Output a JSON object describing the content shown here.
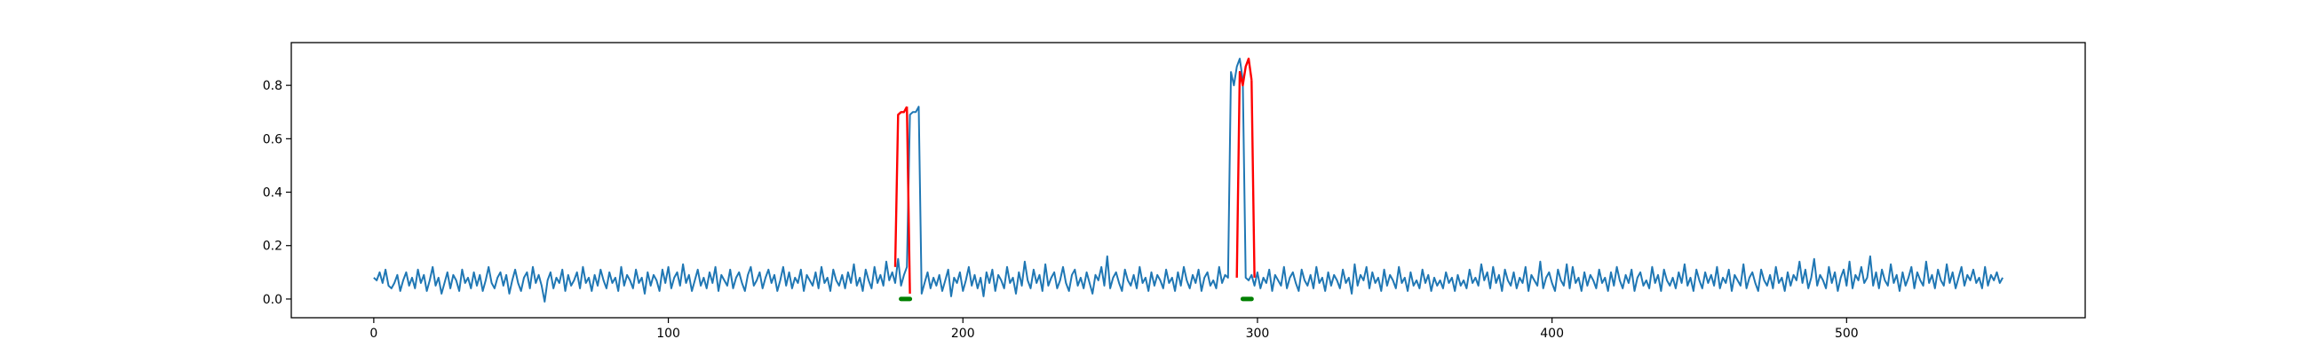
{
  "chart_data": {
    "type": "line",
    "title": "",
    "xlabel": "",
    "ylabel": "",
    "xlim": [
      -28,
      581
    ],
    "ylim": [
      -0.07,
      0.96
    ],
    "x_ticks": [
      0,
      100,
      200,
      300,
      400,
      500
    ],
    "y_ticks": [
      0.0,
      0.2,
      0.4,
      0.6,
      0.8
    ],
    "grid": false,
    "legend": "none",
    "series": [
      {
        "color": "#1f77b4",
        "x_start": 0,
        "x_step": 1,
        "values": [
          0.08,
          0.07,
          0.1,
          0.06,
          0.11,
          0.05,
          0.04,
          0.06,
          0.09,
          0.03,
          0.07,
          0.1,
          0.05,
          0.08,
          0.04,
          0.11,
          0.06,
          0.09,
          0.03,
          0.07,
          0.12,
          0.05,
          0.08,
          0.02,
          0.06,
          0.1,
          0.04,
          0.09,
          0.07,
          0.03,
          0.11,
          0.06,
          0.08,
          0.04,
          0.1,
          0.05,
          0.09,
          0.03,
          0.07,
          0.12,
          0.06,
          0.04,
          0.08,
          0.1,
          0.05,
          0.09,
          0.02,
          0.07,
          0.11,
          0.06,
          0.03,
          0.08,
          0.1,
          0.04,
          0.12,
          0.06,
          0.09,
          0.05,
          -0.01,
          0.07,
          0.1,
          0.04,
          0.08,
          0.06,
          0.11,
          0.03,
          0.09,
          0.05,
          0.07,
          0.1,
          0.04,
          0.12,
          0.06,
          0.08,
          0.03,
          0.09,
          0.05,
          0.11,
          0.07,
          0.04,
          0.1,
          0.06,
          0.08,
          0.03,
          0.12,
          0.05,
          0.09,
          0.07,
          0.04,
          0.11,
          0.06,
          0.08,
          0.02,
          0.1,
          0.05,
          0.09,
          0.07,
          0.03,
          0.11,
          0.06,
          0.12,
          0.04,
          0.08,
          0.1,
          0.05,
          0.13,
          0.06,
          0.09,
          0.03,
          0.07,
          0.11,
          0.05,
          0.08,
          0.04,
          0.1,
          0.06,
          0.12,
          0.03,
          0.09,
          0.07,
          0.05,
          0.11,
          0.04,
          0.08,
          0.1,
          0.06,
          0.03,
          0.09,
          0.12,
          0.05,
          0.07,
          0.1,
          0.04,
          0.08,
          0.11,
          0.06,
          0.09,
          0.03,
          0.07,
          0.12,
          0.05,
          0.1,
          0.04,
          0.08,
          0.06,
          0.11,
          0.03,
          0.09,
          0.07,
          0.05,
          0.1,
          0.04,
          0.12,
          0.06,
          0.08,
          0.03,
          0.11,
          0.07,
          0.05,
          0.09,
          0.04,
          0.1,
          0.06,
          0.13,
          0.05,
          0.08,
          0.03,
          0.11,
          0.07,
          0.04,
          0.12,
          0.06,
          0.09,
          0.05,
          0.14,
          0.07,
          0.1,
          0.06,
          0.15,
          0.05,
          0.09,
          0.12,
          0.69,
          0.7,
          0.7,
          0.72,
          0.02,
          0.06,
          0.1,
          0.04,
          0.08,
          0.05,
          0.09,
          0.03,
          0.07,
          0.11,
          0.01,
          0.08,
          0.06,
          0.1,
          0.03,
          0.07,
          0.12,
          0.05,
          0.09,
          0.04,
          0.08,
          0.01,
          0.1,
          0.06,
          0.11,
          0.03,
          0.09,
          0.07,
          0.04,
          0.12,
          0.06,
          0.08,
          0.02,
          0.1,
          0.05,
          0.14,
          0.07,
          0.04,
          0.11,
          0.06,
          0.09,
          0.03,
          0.13,
          0.05,
          0.08,
          0.1,
          0.04,
          0.07,
          0.12,
          0.06,
          0.03,
          0.09,
          0.11,
          0.05,
          0.08,
          0.04,
          0.1,
          0.06,
          0.02,
          0.09,
          0.07,
          0.12,
          0.05,
          0.16,
          0.04,
          0.08,
          0.1,
          0.06,
          0.03,
          0.11,
          0.07,
          0.05,
          0.09,
          0.04,
          0.12,
          0.06,
          0.08,
          0.03,
          0.1,
          0.05,
          0.09,
          0.07,
          0.04,
          0.11,
          0.06,
          0.08,
          0.03,
          0.1,
          0.05,
          0.12,
          0.07,
          0.04,
          0.09,
          0.06,
          0.11,
          0.03,
          0.08,
          0.1,
          0.05,
          0.07,
          0.04,
          0.12,
          0.06,
          0.09,
          0.08,
          0.85,
          0.8,
          0.87,
          0.9,
          0.82,
          0.08,
          0.07,
          0.09,
          0.05,
          0.1,
          0.04,
          0.08,
          0.06,
          0.11,
          0.03,
          0.09,
          0.07,
          0.05,
          0.12,
          0.04,
          0.08,
          0.1,
          0.06,
          0.03,
          0.11,
          0.07,
          0.05,
          0.09,
          0.04,
          0.12,
          0.06,
          0.08,
          0.03,
          0.1,
          0.05,
          0.09,
          0.07,
          0.04,
          0.11,
          0.06,
          0.08,
          0.02,
          0.13,
          0.05,
          0.09,
          0.07,
          0.12,
          0.04,
          0.1,
          0.06,
          0.08,
          0.03,
          0.11,
          0.05,
          0.09,
          0.07,
          0.04,
          0.12,
          0.06,
          0.08,
          0.03,
          0.1,
          0.05,
          0.07,
          0.04,
          0.11,
          0.06,
          0.09,
          0.03,
          0.08,
          0.05,
          0.07,
          0.04,
          0.1,
          0.06,
          0.08,
          0.03,
          0.09,
          0.05,
          0.07,
          0.04,
          0.11,
          0.06,
          0.08,
          0.05,
          0.13,
          0.07,
          0.1,
          0.04,
          0.12,
          0.06,
          0.09,
          0.03,
          0.11,
          0.07,
          0.05,
          0.1,
          0.04,
          0.08,
          0.06,
          0.12,
          0.03,
          0.09,
          0.07,
          0.05,
          0.14,
          0.04,
          0.08,
          0.1,
          0.06,
          0.03,
          0.11,
          0.07,
          0.05,
          0.13,
          0.04,
          0.12,
          0.06,
          0.08,
          0.03,
          0.1,
          0.05,
          0.09,
          0.07,
          0.04,
          0.11,
          0.06,
          0.08,
          0.03,
          0.1,
          0.05,
          0.12,
          0.07,
          0.04,
          0.09,
          0.06,
          0.11,
          0.03,
          0.08,
          0.1,
          0.05,
          0.07,
          0.04,
          0.12,
          0.06,
          0.09,
          0.03,
          0.11,
          0.07,
          0.05,
          0.08,
          0.04,
          0.1,
          0.06,
          0.13,
          0.05,
          0.08,
          0.03,
          0.11,
          0.07,
          0.04,
          0.1,
          0.06,
          0.09,
          0.05,
          0.12,
          0.04,
          0.08,
          0.06,
          0.11,
          0.03,
          0.09,
          0.07,
          0.05,
          0.13,
          0.04,
          0.08,
          0.1,
          0.06,
          0.03,
          0.11,
          0.07,
          0.05,
          0.09,
          0.04,
          0.12,
          0.06,
          0.08,
          0.03,
          0.1,
          0.05,
          0.09,
          0.07,
          0.14,
          0.06,
          0.11,
          0.04,
          0.08,
          0.15,
          0.05,
          0.09,
          0.07,
          0.04,
          0.12,
          0.06,
          0.1,
          0.03,
          0.08,
          0.11,
          0.05,
          0.14,
          0.04,
          0.09,
          0.07,
          0.12,
          0.06,
          0.08,
          0.16,
          0.05,
          0.1,
          0.04,
          0.11,
          0.07,
          0.05,
          0.13,
          0.06,
          0.09,
          0.03,
          0.1,
          0.05,
          0.08,
          0.12,
          0.04,
          0.1,
          0.07,
          0.05,
          0.14,
          0.06,
          0.09,
          0.04,
          0.11,
          0.07,
          0.05,
          0.13,
          0.06,
          0.1,
          0.04,
          0.08,
          0.12,
          0.05,
          0.09,
          0.07,
          0.11,
          0.06,
          0.08,
          0.04,
          0.12,
          0.05,
          0.09,
          0.07,
          0.1,
          0.06,
          0.08
        ]
      },
      {
        "color": "#ff0000",
        "x": [
          177,
          178,
          179,
          180,
          181
        ],
        "values": [
          0.12,
          0.69,
          0.7,
          0.7,
          0.72
        ]
      },
      {
        "color": "#ff0000",
        "x": [
          293,
          294,
          295,
          296,
          297,
          298
        ],
        "values": [
          0.08,
          0.85,
          0.8,
          0.87,
          0.9,
          0.82
        ]
      },
      {
        "color": "#ff0000",
        "x": [
          181,
          182
        ],
        "values": [
          0.72,
          0.02
        ]
      },
      {
        "color": "#ff0000",
        "x": [
          298,
          299
        ],
        "values": [
          0.82,
          0.08
        ]
      },
      {
        "color": "#008000",
        "x": [
          179,
          182
        ],
        "values": [
          0.0,
          0.0
        ]
      },
      {
        "color": "#008000",
        "x": [
          295,
          298
        ],
        "values": [
          0.0,
          0.0
        ]
      }
    ]
  }
}
